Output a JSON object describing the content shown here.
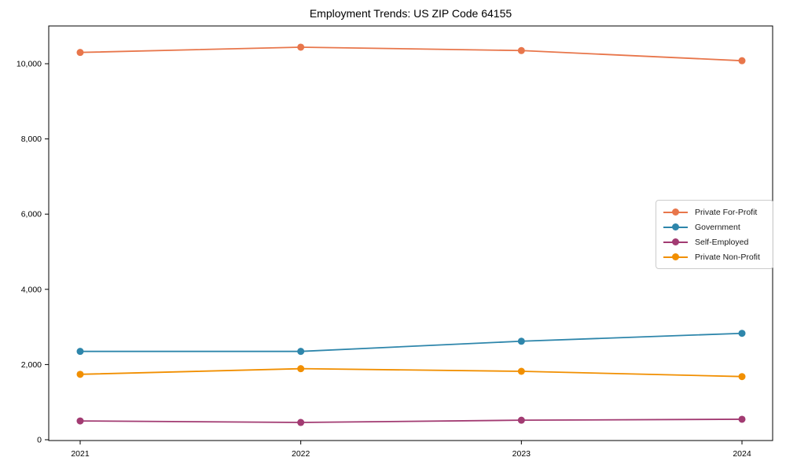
{
  "title": "Employment Trends: US ZIP Code 64155",
  "colors": {
    "background": "#ffffff",
    "axis": "#000000",
    "legend_border": "#cccccc",
    "series": [
      "#e8764b",
      "#2e86ab",
      "#a23b72",
      "#f18f01"
    ]
  },
  "chart_data": {
    "type": "line",
    "title": "Employment Trends: US ZIP Code 64155",
    "x": [
      2021,
      2022,
      2023,
      2024
    ],
    "xtick_labels": [
      "2021",
      "2022",
      "2023",
      "2024"
    ],
    "series": [
      {
        "name": "Private For-Profit",
        "color": "#e8764b",
        "values": [
          10300,
          10440,
          10350,
          10080
        ]
      },
      {
        "name": "Government",
        "color": "#2e86ab",
        "values": [
          2350,
          2350,
          2620,
          2830
        ]
      },
      {
        "name": "Self-Employed",
        "color": "#a23b72",
        "values": [
          500,
          460,
          520,
          545
        ]
      },
      {
        "name": "Private Non-Profit",
        "color": "#f18f01",
        "values": [
          1740,
          1890,
          1820,
          1680
        ]
      }
    ],
    "xlabel": "",
    "ylabel": "",
    "ylim": [
      0,
      11000
    ],
    "yticks": [
      0,
      2000,
      4000,
      6000,
      8000,
      10000
    ],
    "ytick_labels": [
      "0",
      "2,000",
      "4,000",
      "6,000",
      "8,000",
      "10,000"
    ],
    "grid": false,
    "legend_position": "center-right",
    "marker": "circle"
  }
}
